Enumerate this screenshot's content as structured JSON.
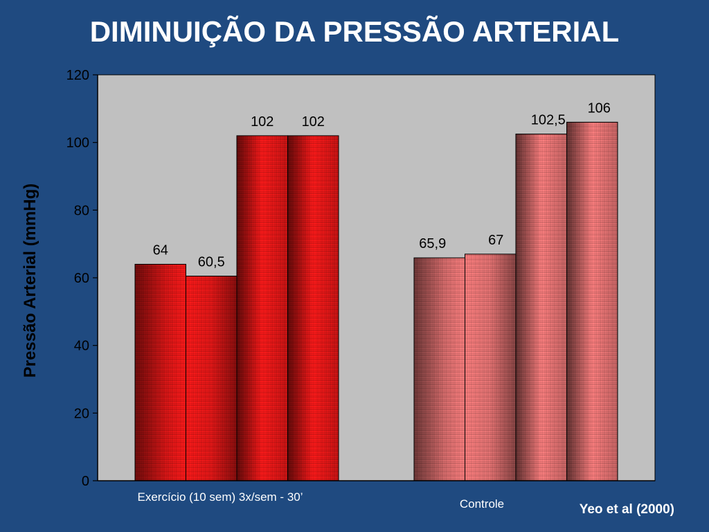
{
  "title": "DIMINUIÇÃO DA PRESSÃO ARTERIAL",
  "citation": "Yeo et al (2000)",
  "colors": {
    "background": "#1f4a80",
    "plot_area": "#c0c0c0",
    "exercise_series": "#ff1a1a",
    "control_series": "#ff8080"
  },
  "chart_data": {
    "type": "bar",
    "title": "DIMINUIÇÃO DA PRESSÃO ARTERIAL",
    "xlabel": "",
    "ylabel": "Pressão Arterial (mmHg)",
    "ylim": [
      0,
      120
    ],
    "yticks": [
      0,
      20,
      40,
      60,
      80,
      100,
      120
    ],
    "grid": false,
    "legend": "none",
    "categories": [
      "Exercício (10 sem) 3x/sem - 30’",
      "Controle"
    ],
    "groups": [
      {
        "category": "Exercício (10 sem) 3x/sem - 30’",
        "values": [
          64,
          60.5,
          102,
          102
        ],
        "labels": [
          "64",
          "60,5",
          "102",
          "102"
        ]
      },
      {
        "category": "Controle",
        "values": [
          65.9,
          67,
          102.5,
          106
        ],
        "labels": [
          "65,9",
          "67",
          "102,5",
          "106"
        ]
      }
    ]
  }
}
